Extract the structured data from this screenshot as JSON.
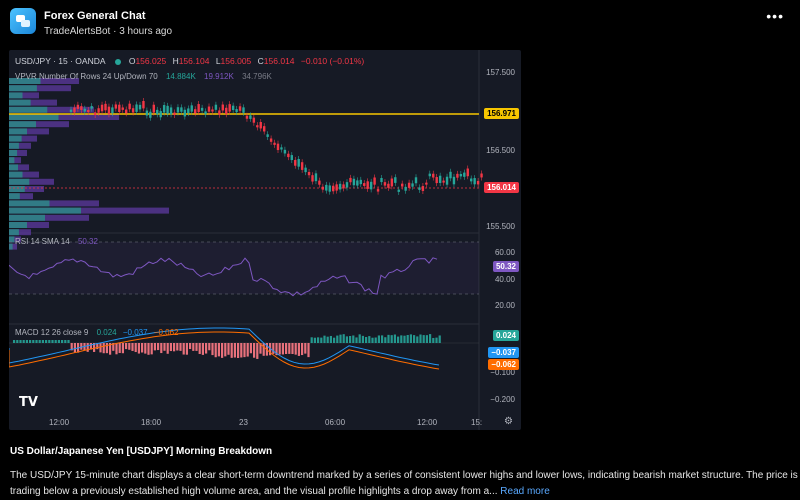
{
  "channel": {
    "title": "Forex General Chat",
    "author": "TradeAlertsBot",
    "time_ago": "· 3 hours ago",
    "more_icon": "more-dots-icon"
  },
  "chart": {
    "symbol": "USD/JPY · 15 · OANDA",
    "ohlc": {
      "o_label": "O",
      "o": "156.025",
      "h_label": "H",
      "h": "156.104",
      "l_label": "L",
      "l": "156.005",
      "c_label": "C",
      "c": "156.014",
      "change": "−0.010 (−0.01%)"
    },
    "vpvr": {
      "label": "VPVR Number Of Rows 24 Up/Down 70",
      "v1": "14.884K",
      "v2": "19.912K",
      "v3": "34.796K"
    },
    "price_ticks": [
      "157.500",
      "156.500",
      "155.500"
    ],
    "yellow_level": "156.971",
    "current_price": "156.014",
    "rsi": {
      "label": "RSI 14 SMA 14",
      "value": "50.32",
      "ticks": [
        "60.00",
        "40.00",
        "20.00"
      ],
      "badge": "50.32"
    },
    "macd": {
      "label": "MACD 12 26 close 9",
      "hist": "0.024",
      "macd": "−0.037",
      "signal": "−0.062",
      "ticks": [
        "−0.100",
        "−0.200"
      ],
      "badge_hist": "0.024",
      "badge_macd": "−0.037",
      "badge_signal": "−0.062"
    },
    "time_ticks": [
      "12:00",
      "18:00",
      "23",
      "06:00",
      "12:00",
      "15:"
    ],
    "colors": {
      "up": "#26a69a",
      "down": "#f23645",
      "yellow": "#f7c600",
      "rsi": "#7e57c2",
      "macd": "#2196f3",
      "signal": "#ff6d00",
      "background": "#161a25"
    },
    "logo": "TV",
    "settings_icon": "settings-gear-icon"
  },
  "post": {
    "title": "US Dollar/Japanese Yen [USDJPY] Morning Breakdown",
    "body": "The USD/JPY 15-minute chart displays a clear short-term downtrend marked by a series of consistent lower highs and lower lows, indicating bearish market structure. The price is trading below a previously established high volume area, and the visual profile highlights a drop away from a...",
    "read_more": "Read more"
  }
}
